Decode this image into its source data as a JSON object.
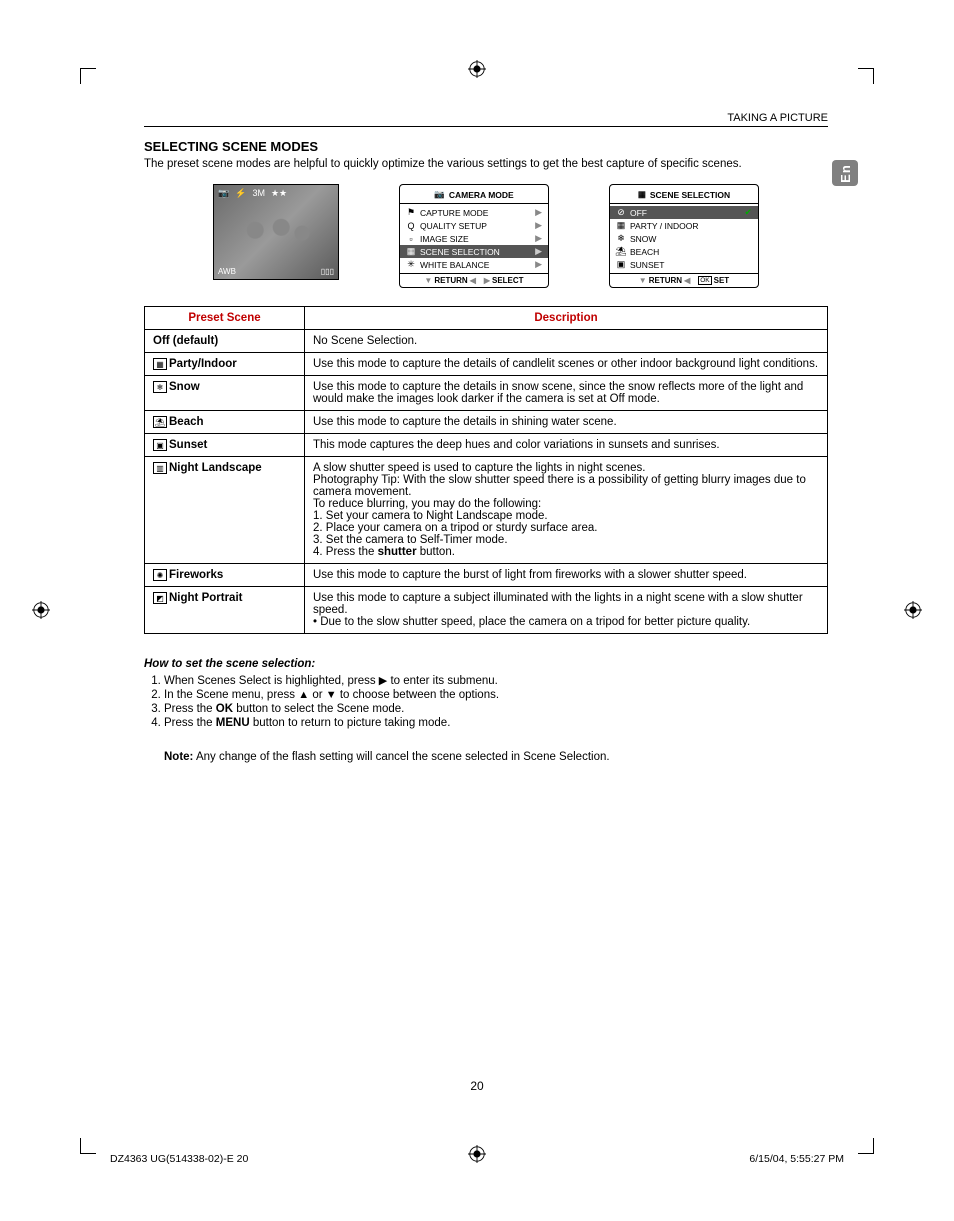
{
  "header": {
    "breadcrumb": "TAKING A PICTURE"
  },
  "lang_tab": "En",
  "section_title": "SELECTING SCENE MODES",
  "intro": "The preset scene modes are helpful to quickly optimize the various settings to get the best capture of specific scenes.",
  "lcd": {
    "top_icons": [
      "📷",
      "⚡",
      "3M",
      "★★"
    ],
    "bottom_left": "AWB",
    "bottom_right": "▯▯▯"
  },
  "menu1": {
    "title": "CAMERA MODE",
    "title_icon": "📷",
    "items": [
      {
        "icon": "⚑",
        "label": "CAPTURE MODE",
        "sel": false
      },
      {
        "icon": "Q",
        "label": "QUALITY SETUP",
        "sel": false
      },
      {
        "icon": "▫",
        "label": "IMAGE SIZE",
        "sel": false
      },
      {
        "icon": "▦",
        "label": "SCENE SELECTION",
        "sel": true
      },
      {
        "icon": "✳",
        "label": "WHITE BALANCE",
        "sel": false
      }
    ],
    "footer_left": "RETURN",
    "footer_right": "SELECT"
  },
  "menu2": {
    "title": "SCENE  SELECTION",
    "title_icon": "▦",
    "items": [
      {
        "icon": "⊘",
        "label": "OFF",
        "sel": true,
        "check": true
      },
      {
        "icon": "▦",
        "label": "PARTY / INDOOR",
        "sel": false
      },
      {
        "icon": "❄",
        "label": "SNOW",
        "sel": false
      },
      {
        "icon": "⛱",
        "label": "BEACH",
        "sel": false
      },
      {
        "icon": "▣",
        "label": "SUNSET",
        "sel": false
      }
    ],
    "footer_left": "RETURN",
    "footer_right": "SET",
    "ok_label": "OK"
  },
  "table": {
    "headers": [
      "Preset Scene",
      "Description"
    ],
    "rows": [
      {
        "label": "Off (default)",
        "icon": null,
        "desc": "No Scene Selection."
      },
      {
        "label": "Party/Indoor",
        "icon": "▦",
        "desc": "Use this mode to capture the details of candlelit scenes or other indoor background light conditions."
      },
      {
        "label": "Snow",
        "icon": "❄",
        "desc": "Use this mode to capture the details in snow scene, since the snow reflects more of the light and would make the images look darker if the camera is set at Off mode."
      },
      {
        "label": "Beach",
        "icon": "⛱",
        "desc": "Use this mode to capture the details in shining water scene."
      },
      {
        "label": "Sunset",
        "icon": "▣",
        "desc": "This mode captures the deep hues and color variations in sunsets and sunrises."
      },
      {
        "label": "Night Landscape",
        "icon": "▥",
        "desc_lines": [
          "A slow shutter speed is used to capture the lights in night scenes.",
          "Photography Tip: With the slow shutter speed there is a possibility of getting blurry  images due to camera movement.",
          "To reduce blurring, you may do the following:",
          "1. Set your camera to Night Landscape mode.",
          "2. Place your camera on a tripod or sturdy surface area.",
          "3. Set the camera to Self-Timer mode.",
          "4. Press the shutter button."
        ]
      },
      {
        "label": "Fireworks",
        "icon": "✺",
        "desc": "Use this mode to capture the burst of light from fireworks with a slower shutter speed."
      },
      {
        "label": "Night Portrait",
        "icon": "◩",
        "desc_lines": [
          "Use this mode to capture a subject illuminated with the lights in a night scene with a slow shutter speed.",
          "•  Due to the slow shutter speed, place the camera on a tripod for better picture quality."
        ]
      }
    ]
  },
  "howto": {
    "title": "How to set the scene selection:",
    "steps": [
      "When Scenes Select is highlighted, press ▶ to enter its submenu.",
      "In the Scene menu, press ▲ or ▼ to choose between the options.",
      "Press the OK button to select the Scene mode.",
      "Press the MENU button to return to picture taking mode."
    ],
    "bold_in_3": "OK",
    "bold_in_4": "MENU"
  },
  "note": {
    "label": "Note:",
    "text": " Any change of the flash setting will cancel the scene selected in Scene Selection."
  },
  "page_number": "20",
  "footer": {
    "left": "DZ4363 UG(514338-02)-E   20",
    "right": "6/15/04, 5:55:27 PM"
  },
  "colors": {
    "header_red": "#c00000",
    "sel_bg": "#555555",
    "lang_bg": "#808080"
  }
}
